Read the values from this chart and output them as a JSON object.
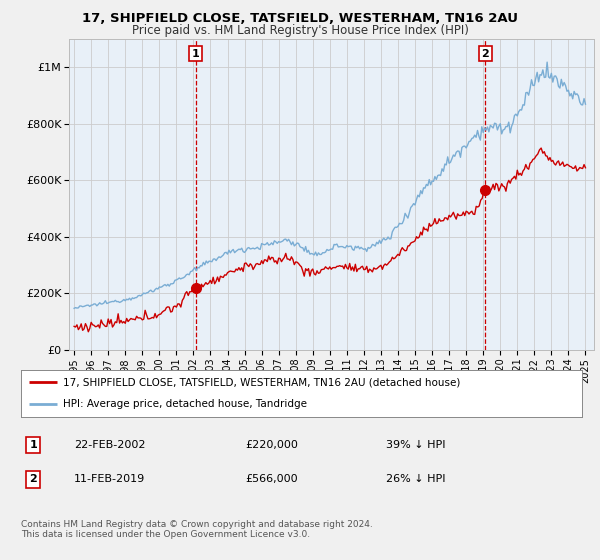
{
  "title1": "17, SHIPFIELD CLOSE, TATSFIELD, WESTERHAM, TN16 2AU",
  "title2": "Price paid vs. HM Land Registry's House Price Index (HPI)",
  "legend_label1": "17, SHIPFIELD CLOSE, TATSFIELD, WESTERHAM, TN16 2AU (detached house)",
  "legend_label2": "HPI: Average price, detached house, Tandridge",
  "annotation1": {
    "num": "1",
    "date": "22-FEB-2002",
    "price": "£220,000",
    "pct": "39% ↓ HPI"
  },
  "annotation2": {
    "num": "2",
    "date": "11-FEB-2019",
    "price": "£566,000",
    "pct": "26% ↓ HPI"
  },
  "footnote": "Contains HM Land Registry data © Crown copyright and database right 2024.\nThis data is licensed under the Open Government Licence v3.0.",
  "color_sale": "#cc0000",
  "color_hpi": "#7aadd4",
  "color_hpi_fill": "#ddeef8",
  "color_vline": "#cc0000",
  "background": "#f0f0f0",
  "plot_background": "#e8f0f8",
  "plot_background_white": "#ffffff",
  "ylim": [
    0,
    1100000
  ],
  "yticks": [
    0,
    200000,
    400000,
    600000,
    800000,
    1000000
  ],
  "ytick_labels": [
    "£0",
    "£200K",
    "£400K",
    "£600K",
    "£800K",
    "£1M"
  ],
  "sale1_x": 2002.13,
  "sale1_y": 220000,
  "sale2_x": 2019.12,
  "sale2_y": 566000,
  "xmin": 1994.7,
  "xmax": 2025.5,
  "xtick_years": [
    1995,
    1996,
    1997,
    1998,
    1999,
    2000,
    2001,
    2002,
    2003,
    2004,
    2005,
    2006,
    2007,
    2008,
    2009,
    2010,
    2011,
    2012,
    2013,
    2014,
    2015,
    2016,
    2017,
    2018,
    2019,
    2020,
    2021,
    2022,
    2023,
    2024,
    2025
  ]
}
